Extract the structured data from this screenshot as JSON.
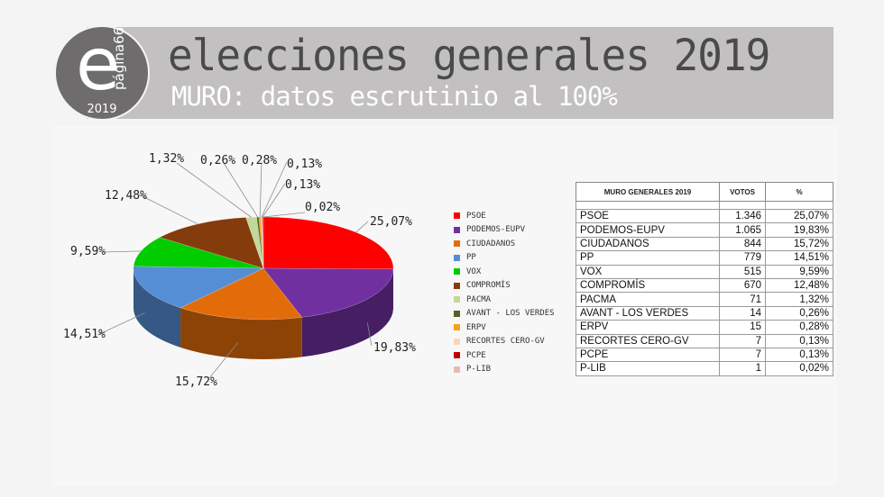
{
  "header": {
    "logo_letter": "e",
    "logo_word": "página66",
    "logo_year": "2019",
    "title": "elecciones generales 2019",
    "subtitle": "MURO: datos escrutinio al 100%"
  },
  "table": {
    "headers": [
      "MURO GENERALES 2019",
      "VOTOS",
      "%"
    ],
    "rows": [
      {
        "party": "PSOE",
        "votes": "1.346",
        "pct": "25,07%"
      },
      {
        "party": "PODEMOS-EUPV",
        "votes": "1.065",
        "pct": "19,83%"
      },
      {
        "party": "CIUDADANOS",
        "votes": "844",
        "pct": "15,72%"
      },
      {
        "party": "PP",
        "votes": "779",
        "pct": "14,51%"
      },
      {
        "party": "VOX",
        "votes": "515",
        "pct": "9,59%"
      },
      {
        "party": "COMPROMÍS",
        "votes": "670",
        "pct": "12,48%"
      },
      {
        "party": "PACMA",
        "votes": "71",
        "pct": "1,32%"
      },
      {
        "party": "AVANT - LOS VERDES",
        "votes": "14",
        "pct": "0,26%"
      },
      {
        "party": "ERPV",
        "votes": "15",
        "pct": "0,28%"
      },
      {
        "party": "RECORTES CERO-GV",
        "votes": "7",
        "pct": "0,13%"
      },
      {
        "party": "PCPE",
        "votes": "7",
        "pct": "0,13%"
      },
      {
        "party": "P-LIB",
        "votes": "1",
        "pct": "0,02%"
      }
    ]
  },
  "chart_data": {
    "type": "pie",
    "style": "3d",
    "title": "",
    "legend_position": "right",
    "categories": [
      "PSOE",
      "PODEMOS-EUPV",
      "CIUDADANOS",
      "PP",
      "VOX",
      "COMPROMÍS",
      "PACMA",
      "AVANT - LOS VERDES",
      "ERPV",
      "RECORTES CERO-GV",
      "PCPE",
      "P-LIB"
    ],
    "values": [
      25.07,
      19.83,
      15.72,
      14.51,
      9.59,
      12.48,
      1.32,
      0.26,
      0.28,
      0.13,
      0.13,
      0.02
    ],
    "data_labels": [
      "25,07%",
      "19,83%",
      "15,72%",
      "14,51%",
      "9,59%",
      "12,48%",
      "1,32%",
      "0,26%",
      "0,28%",
      "0,13%",
      "0,13%",
      "0,02%"
    ],
    "colors": [
      "#ff0000",
      "#7030a0",
      "#e36c0a",
      "#558ed5",
      "#00cc00",
      "#843c0c",
      "#c4d79b",
      "#4f6228",
      "#f9a11b",
      "#fcd5b5",
      "#c00000",
      "#e6b9b8"
    ]
  }
}
